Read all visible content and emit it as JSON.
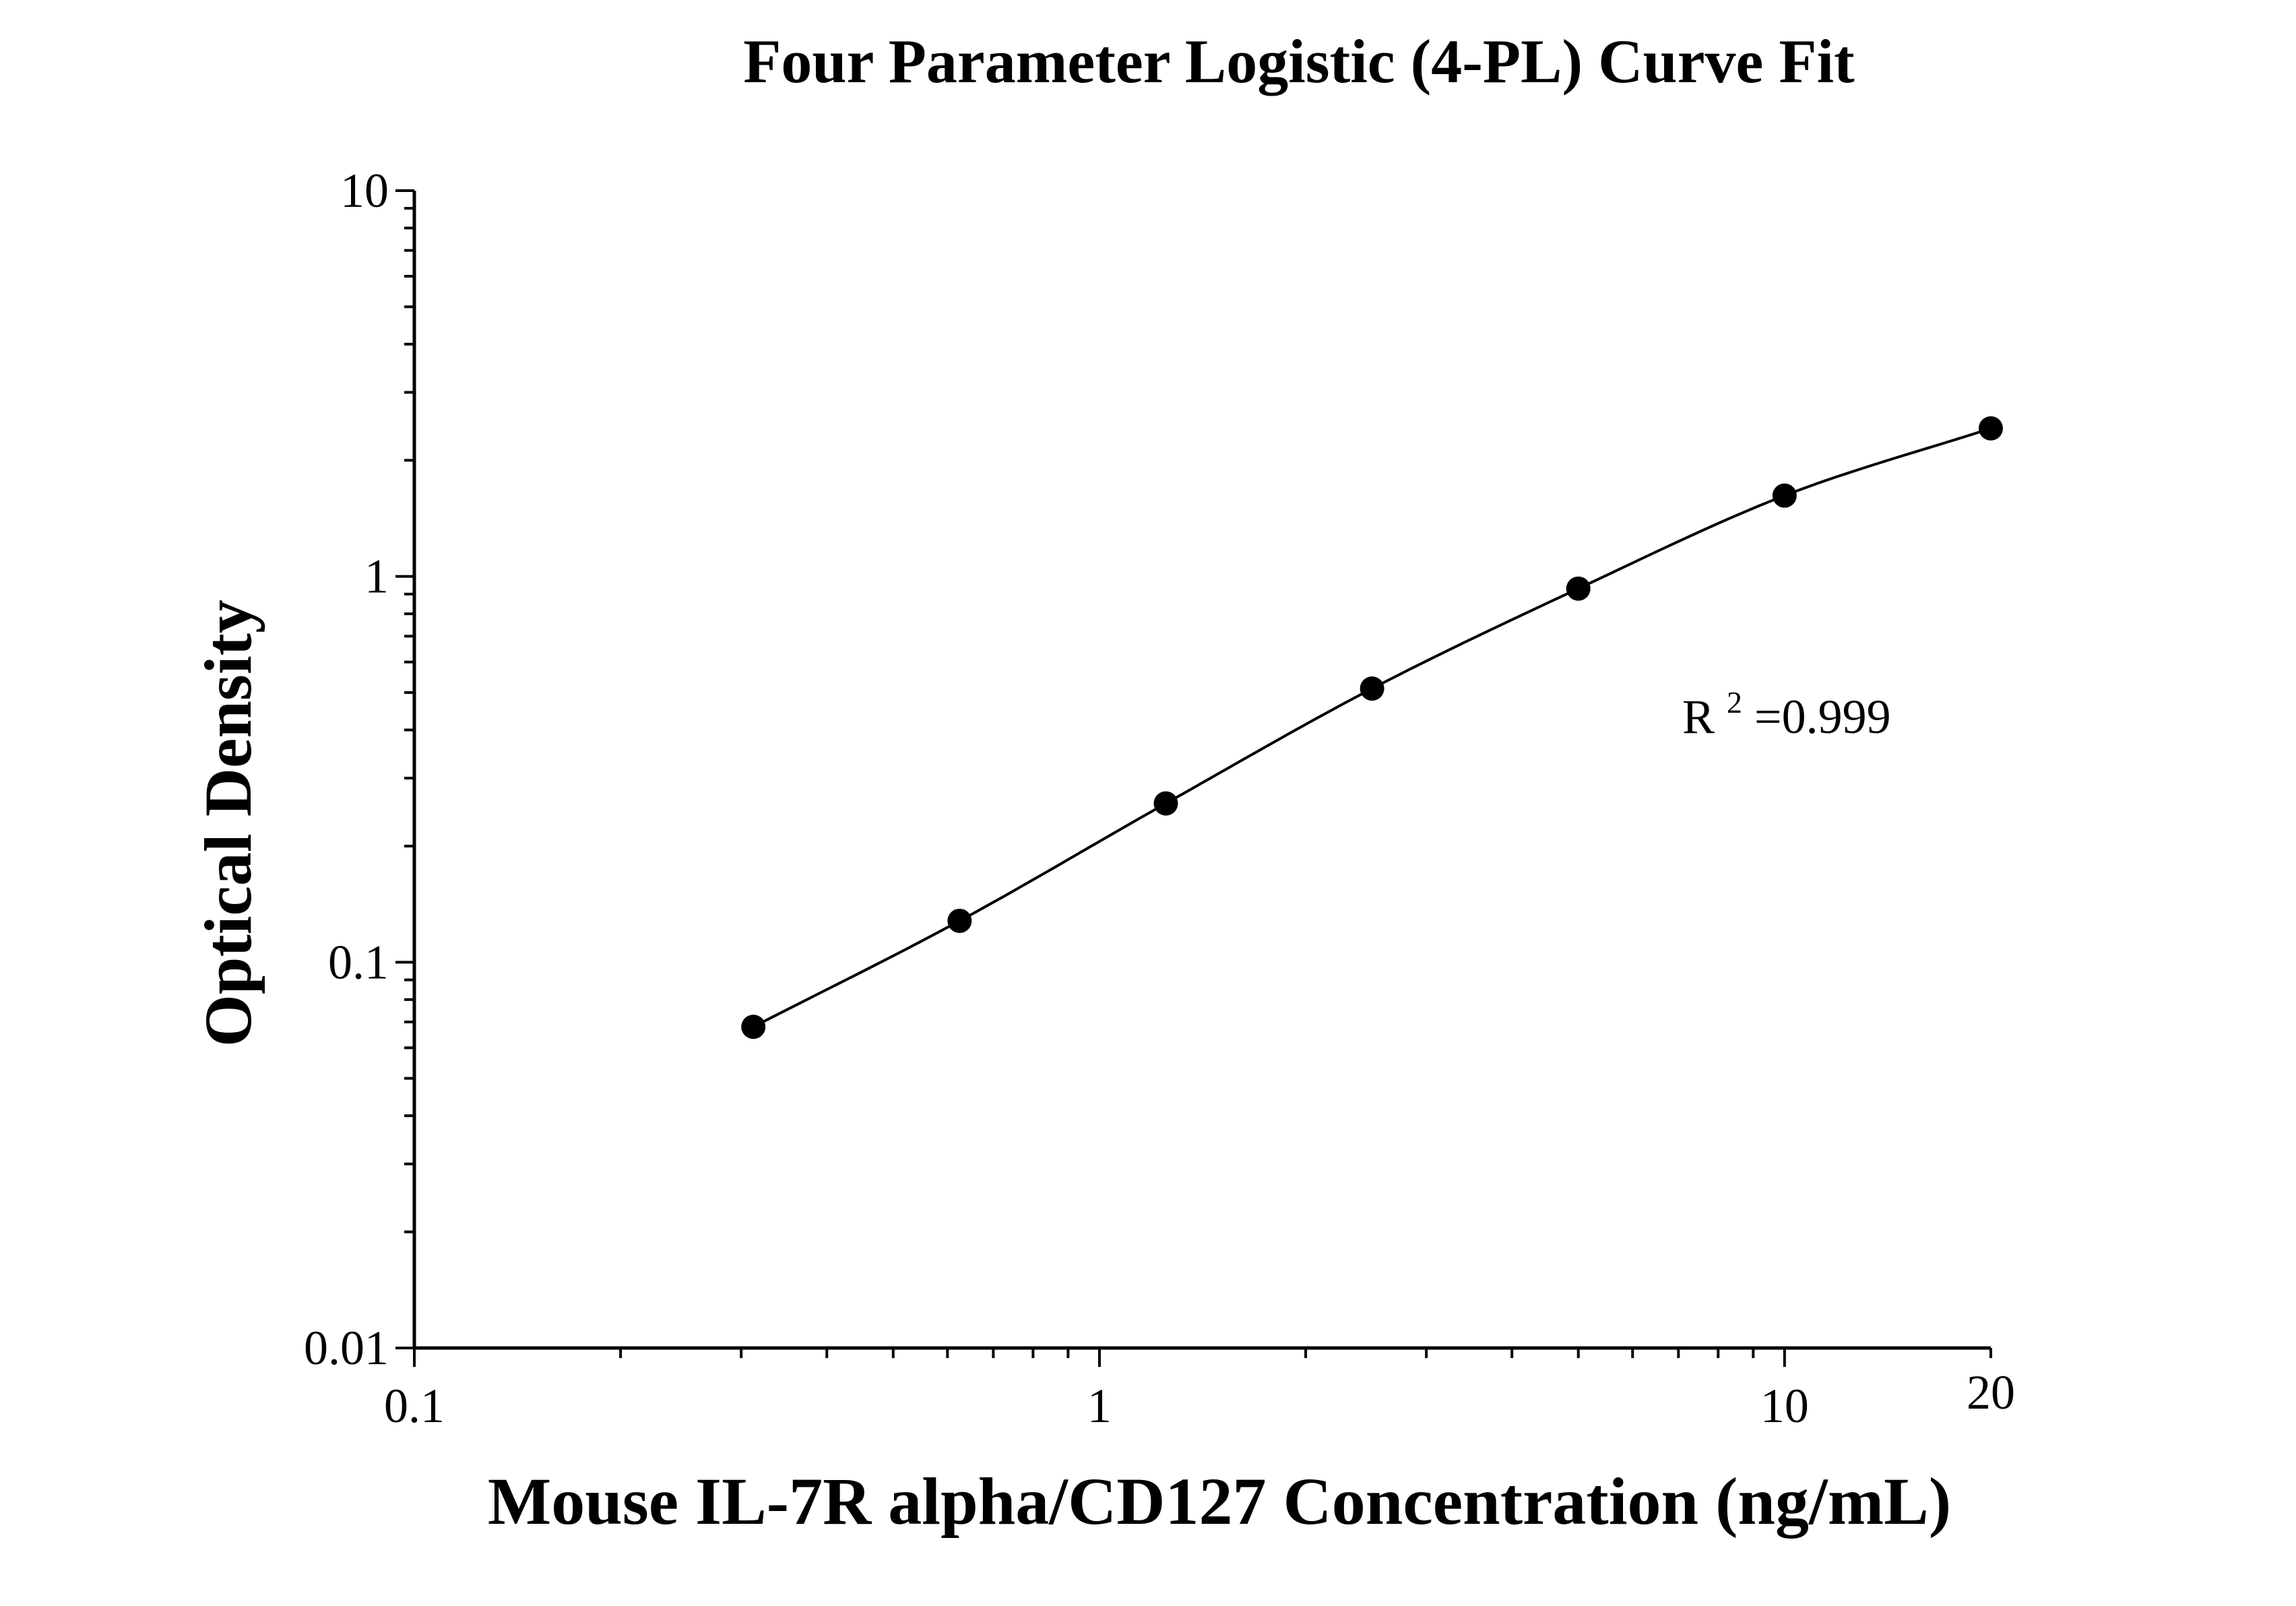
{
  "chart_data": {
    "type": "scatter",
    "title": "Four Parameter Logistic (4-PL) Curve Fit",
    "xlabel": "Mouse IL-7R alpha/CD127 Concentration (ng/mL)",
    "ylabel": "Optical Density",
    "xscale": "log",
    "yscale": "log",
    "xlim": [
      0.1,
      20
    ],
    "ylim": [
      0.01,
      10
    ],
    "x_tick_labels": [
      "0.1",
      "1",
      "10",
      "20"
    ],
    "x_tick_values": [
      0.1,
      1,
      10,
      20
    ],
    "y_tick_labels": [
      "0.01",
      "0.1",
      "1",
      "10"
    ],
    "y_tick_values": [
      0.01,
      0.1,
      1,
      10
    ],
    "grid": false,
    "series": [
      {
        "x": [
          0.3125,
          0.625,
          1.25,
          2.5,
          5,
          10,
          20
        ],
        "y": [
          0.068,
          0.128,
          0.258,
          0.512,
          0.93,
          1.62,
          2.42
        ]
      }
    ],
    "fit_curve": "4-PL",
    "annotation": {
      "r_label": "R",
      "superscript": "2",
      "value_text": "=0.999"
    },
    "colors": {
      "points": "#000000",
      "line": "#000000",
      "background": "#ffffff"
    }
  }
}
